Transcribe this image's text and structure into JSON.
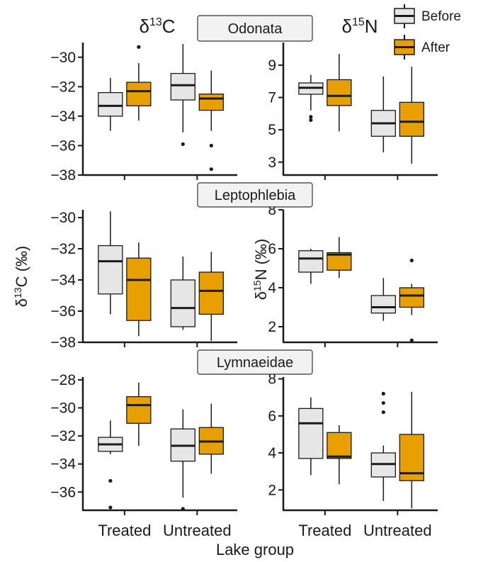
{
  "colors": {
    "before": "#e6e6e6",
    "after": "#e8a000",
    "axis": "#1a1a1a",
    "strip_fill": "#f2f2f2"
  },
  "legend": {
    "items": [
      {
        "label": "Before",
        "color": "#e6e6e6"
      },
      {
        "label": "After",
        "color": "#e8a000"
      }
    ]
  },
  "column_titles": {
    "left": "δ13C",
    "right": "δ15N"
  },
  "x_axis_title": "Lake group",
  "chart_data": [
    {
      "type": "box",
      "facet": "Odonata",
      "ylabel": "δ13C",
      "categories": [
        "Treated",
        "Untreated"
      ],
      "ylim": [
        -38,
        -29
      ],
      "yticks": [
        -30,
        -32,
        -34,
        -36,
        -38
      ],
      "series": [
        {
          "name": "Before",
          "boxes": [
            {
              "group": "Treated",
              "whisker_low": -35.0,
              "q1": -34.0,
              "median": -33.3,
              "q3": -32.4,
              "whisker_high": -31.4,
              "outliers": []
            },
            {
              "group": "Untreated",
              "whisker_low": -35.1,
              "q1": -32.9,
              "median": -31.9,
              "q3": -31.1,
              "whisker_high": -29.1,
              "outliers": [
                -35.9
              ]
            }
          ]
        },
        {
          "name": "After",
          "boxes": [
            {
              "group": "Treated",
              "whisker_low": -34.3,
              "q1": -33.3,
              "median": -32.3,
              "q3": -31.7,
              "whisker_high": -30.4,
              "outliers": [
                -29.3
              ]
            },
            {
              "group": "Untreated",
              "whisker_low": -35.0,
              "q1": -33.6,
              "median": -32.8,
              "q3": -32.5,
              "whisker_high": -30.9,
              "outliers": [
                -36.0,
                -37.6
              ]
            }
          ]
        }
      ]
    },
    {
      "type": "box",
      "facet": "Odonata",
      "ylabel": "δ15N",
      "categories": [
        "Treated",
        "Untreated"
      ],
      "ylim": [
        2.2,
        10.4
      ],
      "yticks": [
        9,
        7,
        5,
        3
      ],
      "series": [
        {
          "name": "Before",
          "boxes": [
            {
              "group": "Treated",
              "whisker_low": 6.2,
              "q1": 7.2,
              "median": 7.6,
              "q3": 7.9,
              "whisker_high": 8.4,
              "outliers": [
                5.8,
                5.6
              ]
            },
            {
              "group": "Untreated",
              "whisker_low": 3.6,
              "q1": 4.6,
              "median": 5.4,
              "q3": 6.2,
              "whisker_high": 8.3,
              "outliers": []
            }
          ]
        },
        {
          "name": "After",
          "boxes": [
            {
              "group": "Treated",
              "whisker_low": 4.9,
              "q1": 6.5,
              "median": 7.1,
              "q3": 8.1,
              "whisker_high": 9.7,
              "outliers": []
            },
            {
              "group": "Untreated",
              "whisker_low": 2.9,
              "q1": 4.6,
              "median": 5.5,
              "q3": 6.7,
              "whisker_high": 8.9,
              "outliers": []
            }
          ]
        }
      ]
    },
    {
      "type": "box",
      "facet": "Leptophlebia",
      "ylabel": "δ13C (‰)",
      "categories": [
        "Treated",
        "Untreated"
      ],
      "ylim": [
        -38,
        -29.5
      ],
      "yticks": [
        -30,
        -32,
        -34,
        -36,
        -38
      ],
      "series": [
        {
          "name": "Before",
          "boxes": [
            {
              "group": "Treated",
              "whisker_low": -36.2,
              "q1": -34.9,
              "median": -32.8,
              "q3": -31.8,
              "whisker_high": -29.6,
              "outliers": []
            },
            {
              "group": "Untreated",
              "whisker_low": -37.2,
              "q1": -37.0,
              "median": -35.8,
              "q3": -34.0,
              "whisker_high": -32.5,
              "outliers": []
            }
          ]
        },
        {
          "name": "After",
          "boxes": [
            {
              "group": "Treated",
              "whisker_low": -37.6,
              "q1": -36.6,
              "median": -34.0,
              "q3": -32.6,
              "whisker_high": -31.6,
              "outliers": []
            },
            {
              "group": "Untreated",
              "whisker_low": -37.9,
              "q1": -36.2,
              "median": -34.7,
              "q3": -33.5,
              "whisker_high": -32.2,
              "outliers": []
            }
          ]
        }
      ]
    },
    {
      "type": "box",
      "facet": "Leptophlebia",
      "ylabel": "δ15N (‰)",
      "categories": [
        "Treated",
        "Untreated"
      ],
      "ylim": [
        1.2,
        8.0
      ],
      "yticks": [
        8,
        6,
        4,
        2
      ],
      "series": [
        {
          "name": "Before",
          "boxes": [
            {
              "group": "Treated",
              "whisker_low": 4.2,
              "q1": 4.8,
              "median": 5.5,
              "q3": 5.9,
              "whisker_high": 6.0,
              "outliers": []
            },
            {
              "group": "Untreated",
              "whisker_low": 2.3,
              "q1": 2.7,
              "median": 3.0,
              "q3": 3.6,
              "whisker_high": 4.5,
              "outliers": []
            }
          ]
        },
        {
          "name": "After",
          "boxes": [
            {
              "group": "Treated",
              "whisker_low": 4.5,
              "q1": 4.9,
              "median": 5.7,
              "q3": 5.8,
              "whisker_high": 6.6,
              "outliers": []
            },
            {
              "group": "Untreated",
              "whisker_low": 2.6,
              "q1": 3.0,
              "median": 3.6,
              "q3": 4.0,
              "whisker_high": 4.2,
              "outliers": [
                5.4,
                1.3
              ]
            }
          ]
        }
      ]
    },
    {
      "type": "box",
      "facet": "Lymnaeidae",
      "ylabel": "δ13C",
      "categories": [
        "Treated",
        "Untreated"
      ],
      "ylim": [
        -37.3,
        -27.8
      ],
      "yticks": [
        -28,
        -30,
        -32,
        -34,
        -36
      ],
      "series": [
        {
          "name": "Before",
          "boxes": [
            {
              "group": "Treated",
              "whisker_low": -33.3,
              "q1": -33.1,
              "median": -32.6,
              "q3": -32.1,
              "whisker_high": -30.9,
              "outliers": [
                -35.2,
                -37.1
              ]
            },
            {
              "group": "Untreated",
              "whisker_low": -36.4,
              "q1": -33.8,
              "median": -32.7,
              "q3": -31.5,
              "whisker_high": -30.1,
              "outliers": [
                -37.2
              ]
            }
          ]
        },
        {
          "name": "After",
          "boxes": [
            {
              "group": "Treated",
              "whisker_low": -32.7,
              "q1": -31.1,
              "median": -29.8,
              "q3": -29.2,
              "whisker_high": -28.2,
              "outliers": []
            },
            {
              "group": "Untreated",
              "whisker_low": -34.7,
              "q1": -33.3,
              "median": -32.4,
              "q3": -31.4,
              "whisker_high": -29.7,
              "outliers": []
            }
          ]
        }
      ]
    },
    {
      "type": "box",
      "facet": "Lymnaeidae",
      "ylabel": "δ15N",
      "categories": [
        "Treated",
        "Untreated"
      ],
      "ylim": [
        0.9,
        8.1
      ],
      "yticks": [
        8,
        6,
        4,
        2
      ],
      "series": [
        {
          "name": "Before",
          "boxes": [
            {
              "group": "Treated",
              "whisker_low": 2.8,
              "q1": 3.7,
              "median": 5.6,
              "q3": 6.4,
              "whisker_high": 7.0,
              "outliers": []
            },
            {
              "group": "Untreated",
              "whisker_low": 1.4,
              "q1": 2.7,
              "median": 3.4,
              "q3": 4.0,
              "whisker_high": 4.4,
              "outliers": [
                7.2,
                6.7,
                6.2
              ]
            }
          ]
        },
        {
          "name": "After",
          "boxes": [
            {
              "group": "Treated",
              "whisker_low": 2.3,
              "q1": 3.7,
              "median": 3.8,
              "q3": 5.1,
              "whisker_high": 5.5,
              "outliers": []
            },
            {
              "group": "Untreated",
              "whisker_low": 1.0,
              "q1": 2.5,
              "median": 2.9,
              "q3": 5.0,
              "whisker_high": 7.3,
              "outliers": []
            }
          ]
        }
      ]
    }
  ]
}
